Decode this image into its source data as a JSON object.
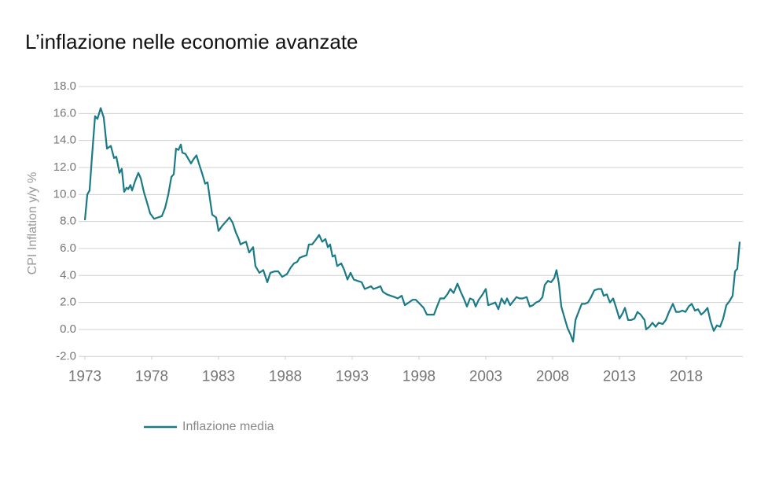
{
  "chart_data": {
    "type": "line",
    "title": "L’inflazione nelle economie avanzate",
    "y_label": "CPI Inflation y/y %",
    "x": [
      1973.0,
      1973.18,
      1973.35,
      1973.53,
      1973.76,
      1973.94,
      1974.18,
      1974.41,
      1974.65,
      1974.94,
      1975.18,
      1975.35,
      1975.59,
      1975.76,
      1975.94,
      1976.12,
      1976.24,
      1976.41,
      1976.53,
      1976.76,
      1977.0,
      1977.18,
      1977.41,
      1977.71,
      1977.88,
      1978.18,
      1978.47,
      1978.76,
      1979.0,
      1979.24,
      1979.47,
      1979.65,
      1979.82,
      1980.0,
      1980.18,
      1980.29,
      1980.53,
      1980.76,
      1980.94,
      1981.12,
      1981.35,
      1981.53,
      1981.76,
      1982.0,
      1982.18,
      1982.35,
      1982.53,
      1982.82,
      1983.0,
      1983.29,
      1983.65,
      1983.82,
      1984.06,
      1984.29,
      1984.47,
      1984.65,
      1984.82,
      1985.06,
      1985.29,
      1985.59,
      1985.76,
      1986.06,
      1986.35,
      1986.65,
      1986.88,
      1987.18,
      1987.47,
      1987.76,
      1988.12,
      1988.41,
      1988.65,
      1988.88,
      1989.06,
      1989.29,
      1989.59,
      1989.76,
      1990.0,
      1990.24,
      1990.53,
      1990.76,
      1991.0,
      1991.18,
      1991.35,
      1991.53,
      1991.71,
      1991.88,
      1992.18,
      1992.41,
      1992.65,
      1992.88,
      1993.12,
      1993.41,
      1993.71,
      1993.94,
      1994.18,
      1994.41,
      1994.59,
      1994.88,
      1995.12,
      1995.29,
      1995.59,
      1995.88,
      1996.18,
      1996.41,
      1996.71,
      1996.94,
      1997.24,
      1997.53,
      1997.76,
      1998.06,
      1998.35,
      1998.59,
      1998.88,
      1999.12,
      1999.35,
      1999.59,
      1999.88,
      2000.12,
      2000.35,
      2000.59,
      2000.88,
      2001.12,
      2001.35,
      2001.59,
      2001.82,
      2002.06,
      2002.24,
      2002.47,
      2002.76,
      2003.0,
      2003.18,
      2003.47,
      2003.71,
      2003.94,
      2004.18,
      2004.41,
      2004.59,
      2004.82,
      2005.06,
      2005.29,
      2005.53,
      2005.76,
      2006.06,
      2006.29,
      2006.53,
      2006.76,
      2007.0,
      2007.24,
      2007.41,
      2007.65,
      2007.88,
      2008.12,
      2008.29,
      2008.47,
      2008.65,
      2008.88,
      2009.12,
      2009.35,
      2009.53,
      2009.71,
      2009.94,
      2010.18,
      2010.41,
      2010.65,
      2010.88,
      2011.12,
      2011.41,
      2011.65,
      2011.82,
      2012.06,
      2012.29,
      2012.53,
      2012.76,
      2013.0,
      2013.24,
      2013.41,
      2013.65,
      2013.88,
      2014.12,
      2014.35,
      2014.59,
      2014.88,
      2015.0,
      2015.24,
      2015.47,
      2015.71,
      2015.94,
      2016.24,
      2016.47,
      2016.71,
      2017.0,
      2017.24,
      2017.47,
      2017.71,
      2017.94,
      2018.18,
      2018.41,
      2018.65,
      2018.88,
      2019.12,
      2019.35,
      2019.59,
      2019.82,
      2020.06,
      2020.29,
      2020.53,
      2020.76,
      2021.0,
      2021.24,
      2021.47,
      2021.65,
      2021.82,
      2022.0
    ],
    "series": [
      {
        "name": "Inflazione media",
        "color": "#1a7a86",
        "values": [
          8.1,
          10.0,
          10.3,
          12.8,
          15.8,
          15.6,
          16.4,
          15.7,
          13.4,
          13.6,
          12.7,
          12.8,
          11.6,
          11.9,
          10.2,
          10.5,
          10.4,
          10.7,
          10.3,
          11.0,
          11.6,
          11.2,
          10.2,
          9.2,
          8.6,
          8.2,
          8.3,
          8.4,
          9.0,
          10.0,
          11.3,
          11.5,
          13.4,
          13.3,
          13.7,
          13.1,
          13.0,
          12.6,
          12.3,
          12.6,
          12.9,
          12.3,
          11.6,
          10.8,
          10.9,
          9.7,
          8.5,
          8.3,
          7.3,
          7.7,
          8.1,
          8.3,
          7.9,
          7.2,
          6.8,
          6.3,
          6.4,
          6.5,
          5.7,
          6.1,
          4.7,
          4.2,
          4.4,
          3.5,
          4.2,
          4.3,
          4.3,
          3.9,
          4.1,
          4.6,
          4.9,
          5.0,
          5.3,
          5.4,
          5.5,
          6.3,
          6.3,
          6.6,
          7.0,
          6.5,
          6.7,
          6.1,
          6.3,
          5.4,
          5.5,
          4.7,
          4.9,
          4.4,
          3.7,
          4.2,
          3.7,
          3.6,
          3.5,
          3.0,
          3.1,
          3.2,
          3.0,
          3.1,
          3.2,
          2.8,
          2.6,
          2.5,
          2.4,
          2.3,
          2.5,
          1.8,
          2.0,
          2.2,
          2.2,
          1.9,
          1.6,
          1.1,
          1.1,
          1.1,
          1.7,
          2.3,
          2.3,
          2.6,
          3.0,
          2.7,
          3.4,
          2.8,
          2.3,
          1.7,
          2.3,
          2.2,
          1.7,
          2.2,
          2.6,
          3.0,
          1.8,
          1.9,
          2.0,
          1.5,
          2.3,
          1.9,
          2.3,
          1.8,
          2.1,
          2.4,
          2.3,
          2.3,
          2.4,
          1.7,
          1.8,
          2.0,
          2.1,
          2.4,
          3.3,
          3.6,
          3.5,
          3.8,
          4.4,
          3.4,
          1.7,
          0.9,
          0.1,
          -0.4,
          -0.9,
          0.7,
          1.3,
          1.9,
          1.9,
          2.0,
          2.4,
          2.9,
          3.0,
          3.0,
          2.5,
          2.6,
          2.0,
          2.3,
          1.6,
          0.8,
          1.2,
          1.6,
          0.7,
          0.7,
          0.8,
          1.3,
          1.1,
          0.7,
          0.0,
          0.2,
          0.5,
          0.2,
          0.5,
          0.4,
          0.7,
          1.3,
          1.9,
          1.3,
          1.3,
          1.4,
          1.3,
          1.7,
          1.9,
          1.4,
          1.5,
          1.1,
          1.3,
          1.6,
          0.6,
          -0.1,
          0.3,
          0.2,
          0.8,
          1.8,
          2.1,
          2.5,
          4.3,
          4.5,
          6.5
        ]
      }
    ],
    "xlim": [
      1973,
      2022.25
    ],
    "xticks": [
      1973,
      1978,
      1983,
      1988,
      1993,
      1998,
      2003,
      2008,
      2013,
      2018
    ],
    "ylim": [
      -2,
      18
    ],
    "yticks": [
      {
        "value": -2,
        "label": "-2.0"
      },
      {
        "value": 0,
        "label": "0.0"
      },
      {
        "value": 2,
        "label": "2.0"
      },
      {
        "value": 4,
        "label": "4.0"
      },
      {
        "value": 6,
        "label": "6.0"
      },
      {
        "value": 8,
        "label": "8.0"
      },
      {
        "value": 10,
        "label": "10.0"
      },
      {
        "value": 12,
        "label": "12.0"
      },
      {
        "value": 14,
        "label": "14.0"
      },
      {
        "value": 16,
        "label": "16.0"
      },
      {
        "value": 18,
        "label": "18.0"
      }
    ],
    "grid": true,
    "legend": "bottom-left"
  }
}
